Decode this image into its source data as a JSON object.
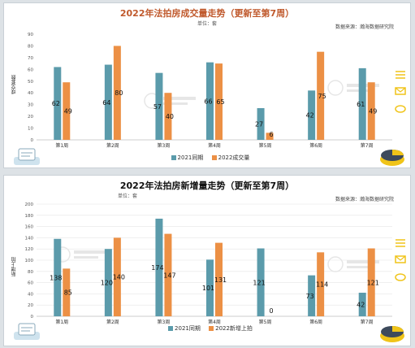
{
  "colors": {
    "series2021": "#5b9bab",
    "series2022": "#ec9045",
    "title_top": "#c0592c",
    "title_bottom": "#111111",
    "axis": "#bfbfbf",
    "grid": "#e6e6e6",
    "deco": "#f0c419"
  },
  "icons": {
    "watermark": "seal-watermark-icon",
    "right_decor": "yellow-decor-icons",
    "left_badge": "document-badge-icon",
    "right_badge": "pie-badge-icon"
  },
  "chart_data": [
    {
      "type": "bar",
      "title": "2022年法拍房成交量走势（更新至第7周）",
      "unit": "单位：套",
      "source": "数据来源：瀚海数据研究院",
      "ylabel": "成交套数",
      "xlabel": "",
      "categories": [
        "第1周",
        "第2周",
        "第3周",
        "第4周",
        "第5周",
        "第6周",
        "第7周"
      ],
      "ylim": [
        0,
        90
      ],
      "yticks": [
        0,
        10,
        20,
        30,
        40,
        50,
        60,
        70,
        80,
        90
      ],
      "grid": false,
      "legend_position": "bottom",
      "series": [
        {
          "name": "2021同期",
          "color": "#5b9bab",
          "values": [
            62,
            64,
            57,
            66,
            27,
            42,
            61
          ]
        },
        {
          "name": "2022成交量",
          "color": "#ec9045",
          "values": [
            49,
            80,
            40,
            65,
            6,
            75,
            49
          ]
        }
      ]
    },
    {
      "type": "bar",
      "title": "2022年法拍房新增量走势（更新至第7周）",
      "unit": "单位：套",
      "source": "数据来源：瀚海数据研究院",
      "ylabel": "新增上拍",
      "xlabel": "",
      "categories": [
        "第1周",
        "第2周",
        "第3周",
        "第4周",
        "第5周",
        "第6周",
        "第7周"
      ],
      "ylim": [
        0,
        200
      ],
      "yticks": [
        0,
        20,
        40,
        60,
        80,
        100,
        120,
        140,
        160,
        180,
        200
      ],
      "grid": true,
      "legend_position": "bottom",
      "series": [
        {
          "name": "2021同期",
          "color": "#5b9bab",
          "values": [
            138,
            120,
            174,
            101,
            121,
            73,
            42
          ]
        },
        {
          "name": "2022新增上拍",
          "color": "#ec9045",
          "values": [
            85,
            140,
            147,
            131,
            0,
            114,
            121
          ]
        }
      ]
    }
  ]
}
